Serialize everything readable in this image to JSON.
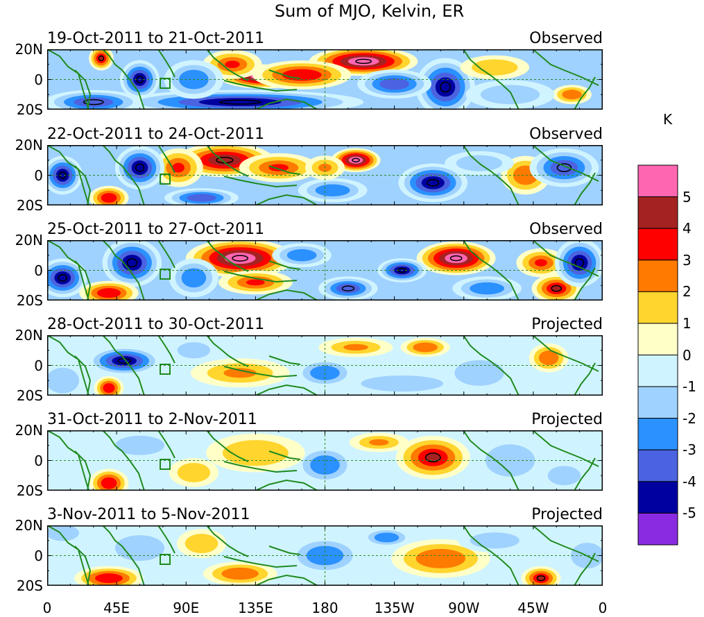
{
  "title": "Sum of MJO, Kelvin, ER",
  "colorbar": {
    "unit": "K",
    "ticks": [
      "5",
      "4",
      "3",
      "2",
      "1",
      "0",
      "-1",
      "-2",
      "-3",
      "-4",
      "-5"
    ],
    "colors": [
      "#ff66b2",
      "#a52222",
      "#ff0000",
      "#ff7a00",
      "#ffd52e",
      "#ffffc8",
      "#d0f4ff",
      "#a0d2ff",
      "#2b91ff",
      "#4b63e0",
      "#0000a0",
      "#8a2be2"
    ]
  },
  "lat_ticks": [
    "20N",
    "0",
    "20S"
  ],
  "lon_ticks": [
    "0",
    "45E",
    "90E",
    "135E",
    "180",
    "135W",
    "90W",
    "45W",
    "0"
  ],
  "chart_data": {
    "type": "heatmap",
    "title": "Sum of MJO, Kelvin, ER",
    "variable_unit": "K",
    "x_range": [
      "0",
      "0"
    ],
    "y_range": [
      "20S",
      "20N"
    ],
    "levels": [
      -5,
      -4,
      -3,
      -2,
      -1,
      0,
      1,
      2,
      3,
      4,
      5
    ],
    "panels": [
      {
        "period": "19-Oct-2011 to 21-Oct-2011",
        "tag": "Observed",
        "blobs": [
          {
            "lon": 140,
            "lat": 2,
            "v": 5.5,
            "rx": 18,
            "ry": 5
          },
          {
            "lon": 205,
            "lat": 12,
            "v": 5.5,
            "rx": 22,
            "ry": 6
          },
          {
            "lon": 165,
            "lat": 3,
            "v": 3.5,
            "rx": 20,
            "ry": 6
          },
          {
            "lon": 120,
            "lat": 10,
            "v": 3,
            "rx": 12,
            "ry": 6
          },
          {
            "lon": 35,
            "lat": 14,
            "v": 4,
            "rx": 5,
            "ry": 5
          },
          {
            "lon": 60,
            "lat": 0,
            "v": -5,
            "rx": 8,
            "ry": 8
          },
          {
            "lon": 125,
            "lat": -15,
            "v": -5,
            "rx": 50,
            "ry": 5
          },
          {
            "lon": 258,
            "lat": -5,
            "v": -4.5,
            "rx": 12,
            "ry": 12
          },
          {
            "lon": 225,
            "lat": -3,
            "v": -3.5,
            "rx": 15,
            "ry": 6
          },
          {
            "lon": 95,
            "lat": 0,
            "v": -2.5,
            "rx": 12,
            "ry": 8
          },
          {
            "lon": 340,
            "lat": -10,
            "v": 2.5,
            "rx": 8,
            "ry": 4
          },
          {
            "lon": 30,
            "lat": -15,
            "v": -4,
            "rx": 20,
            "ry": 5
          },
          {
            "lon": 290,
            "lat": 8,
            "v": 1.5,
            "rx": 14,
            "ry": 5
          },
          {
            "lon": 300,
            "lat": -10,
            "v": -2,
            "rx": 18,
            "ry": 6
          }
        ]
      },
      {
        "period": "22-Oct-2011 to 24-Oct-2011",
        "tag": "Observed",
        "blobs": [
          {
            "lon": 115,
            "lat": 10,
            "v": 4.5,
            "rx": 20,
            "ry": 7
          },
          {
            "lon": 200,
            "lat": 10,
            "v": 5.5,
            "rx": 10,
            "ry": 5
          },
          {
            "lon": 150,
            "lat": 5,
            "v": 3,
            "rx": 16,
            "ry": 6
          },
          {
            "lon": 85,
            "lat": 5,
            "v": 3,
            "rx": 10,
            "ry": 8
          },
          {
            "lon": 60,
            "lat": 5,
            "v": -5,
            "rx": 10,
            "ry": 9
          },
          {
            "lon": 10,
            "lat": 0,
            "v": -5,
            "rx": 8,
            "ry": 8
          },
          {
            "lon": 40,
            "lat": -15,
            "v": 3.5,
            "rx": 8,
            "ry": 5
          },
          {
            "lon": 250,
            "lat": -5,
            "v": -4.5,
            "rx": 14,
            "ry": 8
          },
          {
            "lon": 185,
            "lat": -10,
            "v": -3,
            "rx": 14,
            "ry": 5
          },
          {
            "lon": 310,
            "lat": 0,
            "v": 2.5,
            "rx": 10,
            "ry": 8
          },
          {
            "lon": 335,
            "lat": 5,
            "v": -4,
            "rx": 14,
            "ry": 8
          },
          {
            "lon": 280,
            "lat": 8,
            "v": -2,
            "rx": 14,
            "ry": 5
          },
          {
            "lon": 100,
            "lat": -15,
            "v": -3.5,
            "rx": 15,
            "ry": 4
          },
          {
            "lon": 180,
            "lat": 5,
            "v": 2,
            "rx": 8,
            "ry": 5
          }
        ]
      },
      {
        "period": "25-Oct-2011 to 27-Oct-2011",
        "tag": "Observed",
        "blobs": [
          {
            "lon": 125,
            "lat": 8,
            "v": 5.5,
            "rx": 22,
            "ry": 8
          },
          {
            "lon": 265,
            "lat": 8,
            "v": 5.5,
            "rx": 16,
            "ry": 7
          },
          {
            "lon": 55,
            "lat": 5,
            "v": -5,
            "rx": 12,
            "ry": 10
          },
          {
            "lon": 10,
            "lat": -5,
            "v": -5,
            "rx": 10,
            "ry": 8
          },
          {
            "lon": 40,
            "lat": -15,
            "v": 3.5,
            "rx": 12,
            "ry": 5
          },
          {
            "lon": 135,
            "lat": -8,
            "v": 3,
            "rx": 15,
            "ry": 5
          },
          {
            "lon": 230,
            "lat": 0,
            "v": -4.5,
            "rx": 10,
            "ry": 5
          },
          {
            "lon": 195,
            "lat": -12,
            "v": -4,
            "rx": 12,
            "ry": 5
          },
          {
            "lon": 320,
            "lat": 5,
            "v": 3,
            "rx": 10,
            "ry": 6
          },
          {
            "lon": 330,
            "lat": -12,
            "v": 4,
            "rx": 10,
            "ry": 6
          },
          {
            "lon": 345,
            "lat": 5,
            "v": -4.5,
            "rx": 10,
            "ry": 10
          },
          {
            "lon": 95,
            "lat": -5,
            "v": -3,
            "rx": 10,
            "ry": 8
          },
          {
            "lon": 165,
            "lat": 10,
            "v": -3,
            "rx": 12,
            "ry": 5
          },
          {
            "lon": 285,
            "lat": -12,
            "v": -2.5,
            "rx": 14,
            "ry": 5
          }
        ]
      },
      {
        "period": "28-Oct-2011 to 30-Oct-2011",
        "tag": "Projected",
        "blobs": [
          {
            "lon": 50,
            "lat": 3,
            "v": -4.5,
            "rx": 15,
            "ry": 6
          },
          {
            "lon": 40,
            "lat": -15,
            "v": 3.5,
            "rx": 6,
            "ry": 5
          },
          {
            "lon": 125,
            "lat": -5,
            "v": 2,
            "rx": 20,
            "ry": 6
          },
          {
            "lon": 200,
            "lat": 12,
            "v": 2,
            "rx": 15,
            "ry": 4
          },
          {
            "lon": 245,
            "lat": 12,
            "v": 2.5,
            "rx": 10,
            "ry": 4
          },
          {
            "lon": 180,
            "lat": -5,
            "v": -2.5,
            "rx": 12,
            "ry": 6
          },
          {
            "lon": 230,
            "lat": -12,
            "v": -2,
            "rx": 25,
            "ry": 5
          },
          {
            "lon": 325,
            "lat": 5,
            "v": 2.5,
            "rx": 8,
            "ry": 6
          },
          {
            "lon": 95,
            "lat": 10,
            "v": -2,
            "rx": 10,
            "ry": 5
          },
          {
            "lon": 280,
            "lat": -5,
            "v": -1.5,
            "rx": 15,
            "ry": 8
          },
          {
            "lon": 10,
            "lat": -10,
            "v": -1.5,
            "rx": 10,
            "ry": 8
          }
        ]
      },
      {
        "period": "31-Oct-2011 to 2-Nov-2011",
        "tag": "Projected",
        "blobs": [
          {
            "lon": 250,
            "lat": 2,
            "v": 4,
            "rx": 15,
            "ry": 9
          },
          {
            "lon": 40,
            "lat": -15,
            "v": 3.5,
            "rx": 8,
            "ry": 6
          },
          {
            "lon": 180,
            "lat": -3,
            "v": -3,
            "rx": 12,
            "ry": 8
          },
          {
            "lon": 215,
            "lat": 12,
            "v": 2,
            "rx": 12,
            "ry": 4
          },
          {
            "lon": 135,
            "lat": 5,
            "v": 1.5,
            "rx": 20,
            "ry": 8
          },
          {
            "lon": 60,
            "lat": 10,
            "v": -2,
            "rx": 15,
            "ry": 6
          },
          {
            "lon": 300,
            "lat": 0,
            "v": -1.5,
            "rx": 15,
            "ry": 10
          },
          {
            "lon": 335,
            "lat": -10,
            "v": -2,
            "rx": 10,
            "ry": 6
          },
          {
            "lon": 95,
            "lat": -8,
            "v": 1.5,
            "rx": 10,
            "ry": 6
          }
        ]
      },
      {
        "period": "3-Nov-2011 to 5-Nov-2011",
        "tag": "Projected",
        "blobs": [
          {
            "lon": 40,
            "lat": -15,
            "v": 3.5,
            "rx": 14,
            "ry": 5
          },
          {
            "lon": 125,
            "lat": -12,
            "v": 2.5,
            "rx": 15,
            "ry": 5
          },
          {
            "lon": 255,
            "lat": -2,
            "v": 2.5,
            "rx": 20,
            "ry": 8
          },
          {
            "lon": 320,
            "lat": -15,
            "v": 4,
            "rx": 8,
            "ry": 5
          },
          {
            "lon": 180,
            "lat": 0,
            "v": -2.5,
            "rx": 15,
            "ry": 8
          },
          {
            "lon": 220,
            "lat": 12,
            "v": -3,
            "rx": 10,
            "ry": 4
          },
          {
            "lon": 60,
            "lat": 5,
            "v": -1.5,
            "rx": 15,
            "ry": 8
          },
          {
            "lon": 10,
            "lat": 15,
            "v": -2,
            "rx": 10,
            "ry": 5
          },
          {
            "lon": 290,
            "lat": 10,
            "v": -1.5,
            "rx": 15,
            "ry": 5
          },
          {
            "lon": 100,
            "lat": 8,
            "v": 1.5,
            "rx": 10,
            "ry": 6
          },
          {
            "lon": 350,
            "lat": 0,
            "v": -1.5,
            "rx": 10,
            "ry": 8
          }
        ]
      }
    ]
  }
}
